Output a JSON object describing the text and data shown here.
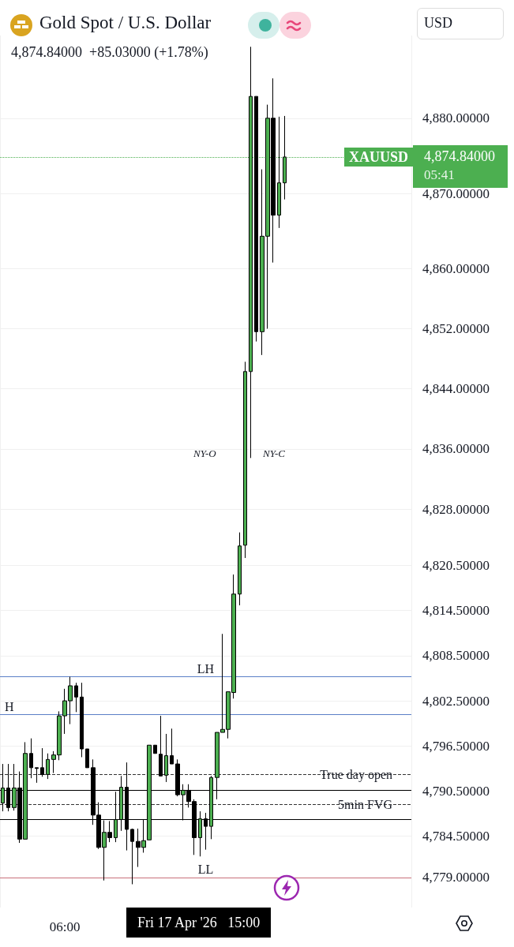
{
  "chart_data": {
    "type": "candlestick",
    "title": "Gold Spot / U.S. Dollar",
    "subtitle": "4,874.84000  +85.03000 (+1.78%)",
    "categories": [
      null,
      null,
      null,
      null,
      null,
      null,
      null,
      null,
      null,
      null,
      null,
      "06:00",
      null,
      null,
      null,
      null,
      null,
      null,
      null,
      null,
      null,
      null,
      null,
      null,
      null,
      null,
      null,
      null,
      null,
      null,
      null,
      null,
      null,
      null,
      null,
      null,
      null,
      null,
      null,
      null,
      null,
      null,
      null,
      null,
      null,
      null,
      null,
      null,
      null,
      null,
      null,
      null,
      null,
      null,
      null,
      null,
      null,
      null,
      null,
      null,
      null,
      null,
      null,
      null,
      null,
      null,
      null,
      null,
      null,
      null,
      null,
      null,
      null
    ],
    "ohlc": [
      [
        4788.9,
        4794.1,
        4787.8,
        4790.9
      ],
      [
        4790.9,
        4794.1,
        4787.8,
        4788.3
      ],
      [
        4788.3,
        4794.1,
        4787.9,
        4790.9
      ],
      [
        4790.9,
        4793.1,
        4783.6,
        4784.1
      ],
      [
        4784.1,
        4797.0,
        4784.1,
        4795.5
      ],
      [
        4795.5,
        4797.5,
        4792.2,
        4793.6
      ],
      [
        4793.6,
        4793.6,
        4791.6,
        4793.5
      ],
      [
        4793.6,
        4796.2,
        4792.4,
        4792.7
      ],
      [
        4792.7,
        4795.5,
        4792.1,
        4794.7
      ],
      [
        4794.7,
        4795.8,
        4792.9,
        4795.3
      ],
      [
        4795.3,
        4801.1,
        4794.6,
        4800.5
      ],
      [
        4800.5,
        4804.1,
        4798.1,
        4802.5
      ],
      [
        4802.5,
        4805.7,
        4799.4,
        4804.5
      ],
      [
        4804.5,
        4804.9,
        4801.0,
        4803.0
      ],
      [
        4803.0,
        4804.9,
        4795.0,
        4796.1
      ],
      [
        4796.1,
        4796.1,
        4793.6,
        4793.6
      ],
      [
        4793.6,
        4794.7,
        4786.0,
        4787.3
      ],
      [
        4787.3,
        4789.0,
        4782.8,
        4783.0
      ],
      [
        4783.0,
        4786.6,
        4778.6,
        4785.0
      ],
      [
        4785.0,
        4786.5,
        4783.7,
        4784.3
      ],
      [
        4784.3,
        4790.4,
        4783.7,
        4786.7
      ],
      [
        4786.7,
        4792.5,
        4785.2,
        4791.0
      ],
      [
        4791.0,
        4794.3,
        4782.6,
        4785.4
      ],
      [
        4785.4,
        4785.5,
        4778.1,
        4783.8
      ],
      [
        4783.8,
        4785.5,
        4780.4,
        4783.0
      ],
      [
        4783.0,
        4786.7,
        4782.3,
        4783.9
      ],
      [
        4784.0,
        4796.6,
        4784.0,
        4796.6
      ],
      [
        4796.6,
        4796.6,
        4795.5,
        4795.5
      ],
      [
        4795.4,
        4800.5,
        4792.5,
        4792.5
      ],
      [
        4792.6,
        4798.1,
        4791.7,
        4795.2
      ],
      [
        4795.2,
        4798.8,
        4794.1,
        4794.1
      ],
      [
        4794.1,
        4794.7,
        4789.8,
        4790.0
      ],
      [
        4790.0,
        4791.4,
        4786.6,
        4790.6
      ],
      [
        4790.6,
        4791.4,
        4788.3,
        4789.1
      ],
      [
        4789.1,
        4789.4,
        4782.0,
        4784.3
      ],
      [
        4784.3,
        4787.8,
        4781.8,
        4786.8
      ],
      [
        4786.8,
        4787.6,
        4782.7,
        4785.8
      ],
      [
        4785.8,
        4792.5,
        4784.1,
        4792.3
      ],
      [
        4792.3,
        4798.3,
        4789.4,
        4798.3
      ],
      [
        4798.3,
        4811.4,
        4798.3,
        4798.7
      ],
      [
        4798.7,
        4803.7,
        4797.5,
        4803.7
      ],
      [
        4803.6,
        4819.3,
        4802.8,
        4816.7
      ],
      [
        4816.7,
        4824.9,
        4815.2,
        4823.1
      ],
      [
        4823.2,
        4847.6,
        4821.5,
        4846.3
      ],
      [
        4846.3,
        4889.5,
        4834.8,
        4882.9
      ],
      [
        4882.9,
        4882.9,
        4850.3,
        4851.6
      ],
      [
        4851.6,
        4873.2,
        4848.5,
        4864.3
      ],
      [
        4864.3,
        4881.8,
        4852.0,
        4880.0
      ],
      [
        4880.0,
        4885.3,
        4860.8,
        4867.1
      ],
      [
        4867.1,
        4880.2,
        4865.4,
        4871.4
      ],
      [
        4871.4,
        4880.3,
        4869.2,
        4874.84
      ],
      null,
      null,
      null,
      null,
      null,
      null,
      null,
      null,
      null,
      null,
      null,
      null,
      null,
      null,
      null,
      null,
      null,
      null,
      null,
      null,
      null,
      null
    ],
    "colors": [
      "#4caf50",
      "#000000",
      "#4caf50",
      "#000000",
      "#4caf50",
      "#000000",
      "#000000",
      "#000000",
      "#4caf50",
      "#4caf50",
      "#4caf50",
      "#4caf50",
      "#4caf50",
      "#000000",
      "#000000",
      "#000000",
      "#000000",
      "#000000",
      "#4caf50",
      "#000000",
      "#4caf50",
      "#4caf50",
      "#000000",
      "#000000",
      "#000000",
      "#4caf50",
      "#4caf50",
      "#000000",
      "#000000",
      "#4caf50",
      "#000000",
      "#000000",
      "#4caf50",
      "#000000",
      "#000000",
      "#4caf50",
      "#000000",
      "#4caf50",
      "#4caf50",
      "#4caf50",
      "#4caf50",
      "#4caf50",
      "#4caf50",
      "#4caf50",
      "#4caf50",
      "#000000",
      "#4caf50",
      "#4caf50",
      "#000000",
      "#4caf50",
      "#4caf50",
      null,
      null,
      null,
      null,
      null,
      null,
      null,
      null,
      null,
      null,
      null,
      null,
      null,
      null,
      null,
      null,
      null,
      null,
      null,
      null,
      null,
      null
    ],
    "ylim": [
      4775,
      4891
    ],
    "yticks": [
      {
        "value": 4880,
        "label": "4,880.00000"
      },
      {
        "value": 4870,
        "label": "4,870.00000"
      },
      {
        "value": 4860,
        "label": "4,860.00000"
      },
      {
        "value": 4852,
        "label": "4,852.00000"
      },
      {
        "value": 4844,
        "label": "4,844.00000"
      },
      {
        "value": 4836,
        "label": "4,836.00000"
      },
      {
        "value": 4828,
        "label": "4,828.00000"
      },
      {
        "value": 4820.5,
        "label": "4,820.50000"
      },
      {
        "value": 4814.5,
        "label": "4,814.50000"
      },
      {
        "value": 4808.5,
        "label": "4,808.50000"
      },
      {
        "value": 4802.5,
        "label": "4,802.50000"
      },
      {
        "value": 4796.5,
        "label": "4,796.50000"
      },
      {
        "value": 4790.5,
        "label": "4,790.50000"
      },
      {
        "value": 4784.5,
        "label": "4,784.50000"
      },
      {
        "value": 4779,
        "label": "4,779.00000"
      }
    ],
    "grid": true,
    "ref_lines": [
      {
        "axis": "y",
        "value": 4805.7,
        "label": "LH",
        "color": "#5b7fc7",
        "line_style": "solid"
      },
      {
        "axis": "y",
        "value": 4800.7,
        "label": "H",
        "color": "#5b7fc7",
        "line_style": "solid"
      },
      {
        "axis": "y",
        "value": 4779,
        "label": "LL",
        "color": "#c9707a",
        "line_style": "solid"
      },
      {
        "axis": "y",
        "value": 4792.7,
        "label": "True day open",
        "color": "#333333",
        "line_style": "dashed"
      },
      {
        "axis": "y",
        "value": 4788.7,
        "label": "5min FVG",
        "color": "#333333",
        "line_style": "dashed"
      },
      {
        "axis": "y",
        "value": 4790.6,
        "color": "#000000",
        "line_style": "solid"
      },
      {
        "axis": "y",
        "value": 4786.7,
        "color": "#000000",
        "line_style": "solid"
      },
      {
        "axis": "y",
        "value": 4874.84,
        "label": "XAUUSD",
        "color": "#4caf50",
        "line_style": "dotted"
      }
    ],
    "annotations": [
      "NY-O",
      "NY-C",
      "4,874.84000",
      "05:41",
      "USD",
      "Fri 17 Apr '26   15:00"
    ]
  }
}
